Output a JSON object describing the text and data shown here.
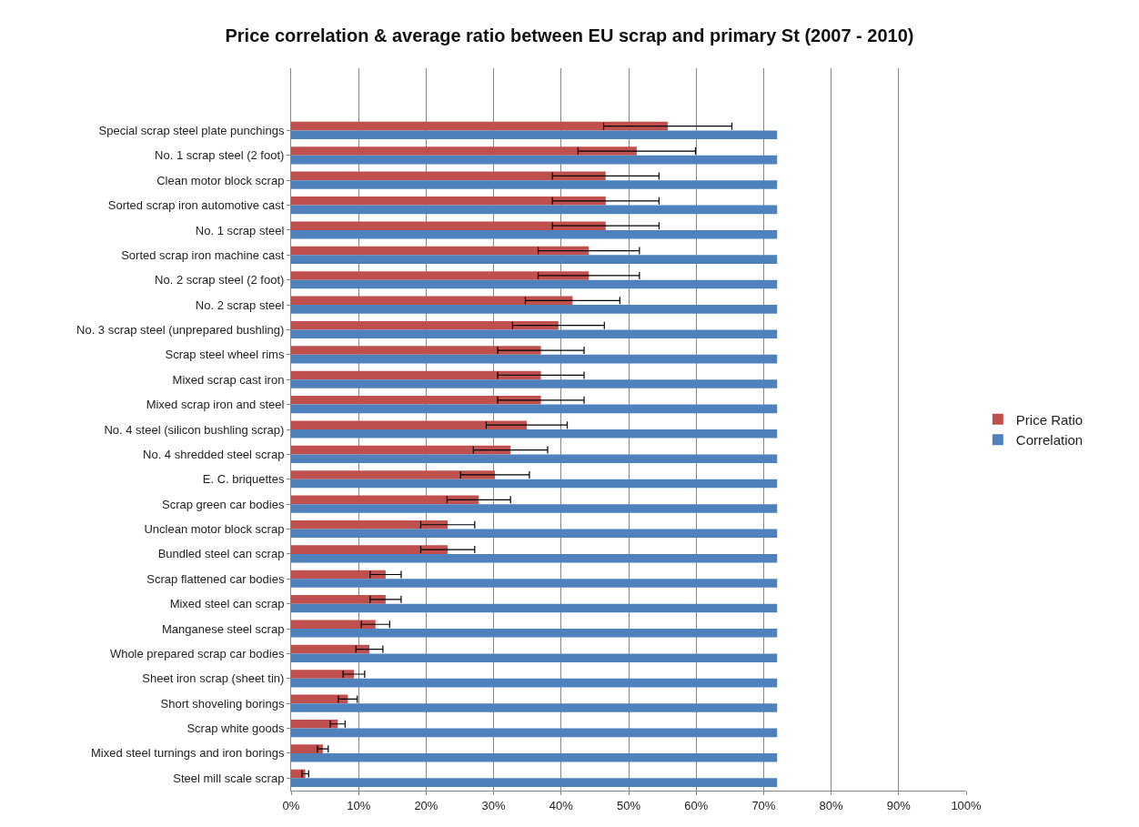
{
  "chart_data": {
    "type": "bar",
    "orientation": "horizontal",
    "title": "Price correlation & average ratio between EU scrap and primary St (2007 - 2010)",
    "categories": [
      null,
      null,
      "Special scrap steel plate punchings",
      "No. 1 scrap steel (2 foot)",
      "Clean motor block scrap",
      "Sorted scrap iron automotive cast",
      "No. 1 scrap steel",
      "Sorted scrap iron machine cast",
      "No. 2 scrap steel (2 foot)",
      "No. 2 scrap steel",
      "No. 3 scrap steel (unprepared bushling)",
      "Scrap steel wheel rims",
      "Mixed scrap cast iron",
      "Mixed scrap iron and steel",
      "No. 4 steel (silicon bushling scrap)",
      "No. 4 shredded steel scrap",
      "E. C. briquettes",
      "Scrap green car bodies",
      "Unclean motor block scrap",
      "Bundled steel can scrap",
      "Scrap flattened car bodies",
      "Mixed steel can scrap",
      "Manganese steel scrap",
      "Whole prepared scrap car bodies",
      "Sheet iron scrap (sheet tin)",
      "Short shoveling borings",
      "Scrap white goods",
      "Mixed steel turnings and iron borings",
      "Steel mill scale scrap"
    ],
    "series": [
      {
        "name": "Price Ratio",
        "color": "#c0504d",
        "values": [
          null,
          null,
          55.8,
          51.2,
          46.6,
          46.6,
          46.6,
          44.1,
          44.1,
          41.7,
          39.6,
          37.0,
          37.0,
          37.0,
          34.9,
          32.5,
          30.2,
          27.8,
          23.2,
          23.2,
          14.0,
          14.0,
          12.5,
          11.6,
          9.3,
          8.4,
          6.9,
          4.7,
          2.1
        ],
        "errors": [
          null,
          null,
          9.5,
          8.7,
          7.9,
          7.9,
          7.9,
          7.5,
          7.5,
          7.0,
          6.8,
          6.4,
          6.4,
          6.4,
          6.0,
          5.5,
          5.1,
          4.7,
          4.0,
          4.0,
          2.3,
          2.3,
          2.1,
          2.0,
          1.6,
          1.4,
          1.1,
          0.8,
          0.5
        ]
      },
      {
        "name": "Correlation",
        "color": "#4f81bd",
        "values": [
          null,
          null,
          72,
          72,
          72,
          72,
          72,
          72,
          72,
          72,
          72,
          72,
          72,
          72,
          72,
          72,
          72,
          72,
          72,
          72,
          72,
          72,
          72,
          72,
          72,
          72,
          72,
          72,
          72
        ]
      }
    ],
    "xlim": [
      0,
      100
    ],
    "xticks": [
      {
        "value": 0,
        "label": "0%"
      },
      {
        "value": 10,
        "label": "10%"
      },
      {
        "value": 20,
        "label": "20%"
      },
      {
        "value": 30,
        "label": "30%"
      },
      {
        "value": 40,
        "label": "40%"
      },
      {
        "value": 50,
        "label": "50%"
      },
      {
        "value": 60,
        "label": "60%"
      },
      {
        "value": 70,
        "label": "70%"
      },
      {
        "value": 80,
        "label": "80%"
      },
      {
        "value": 90,
        "label": "90%"
      },
      {
        "value": 100,
        "label": "100%"
      }
    ],
    "grid": "x",
    "legend": "right"
  }
}
